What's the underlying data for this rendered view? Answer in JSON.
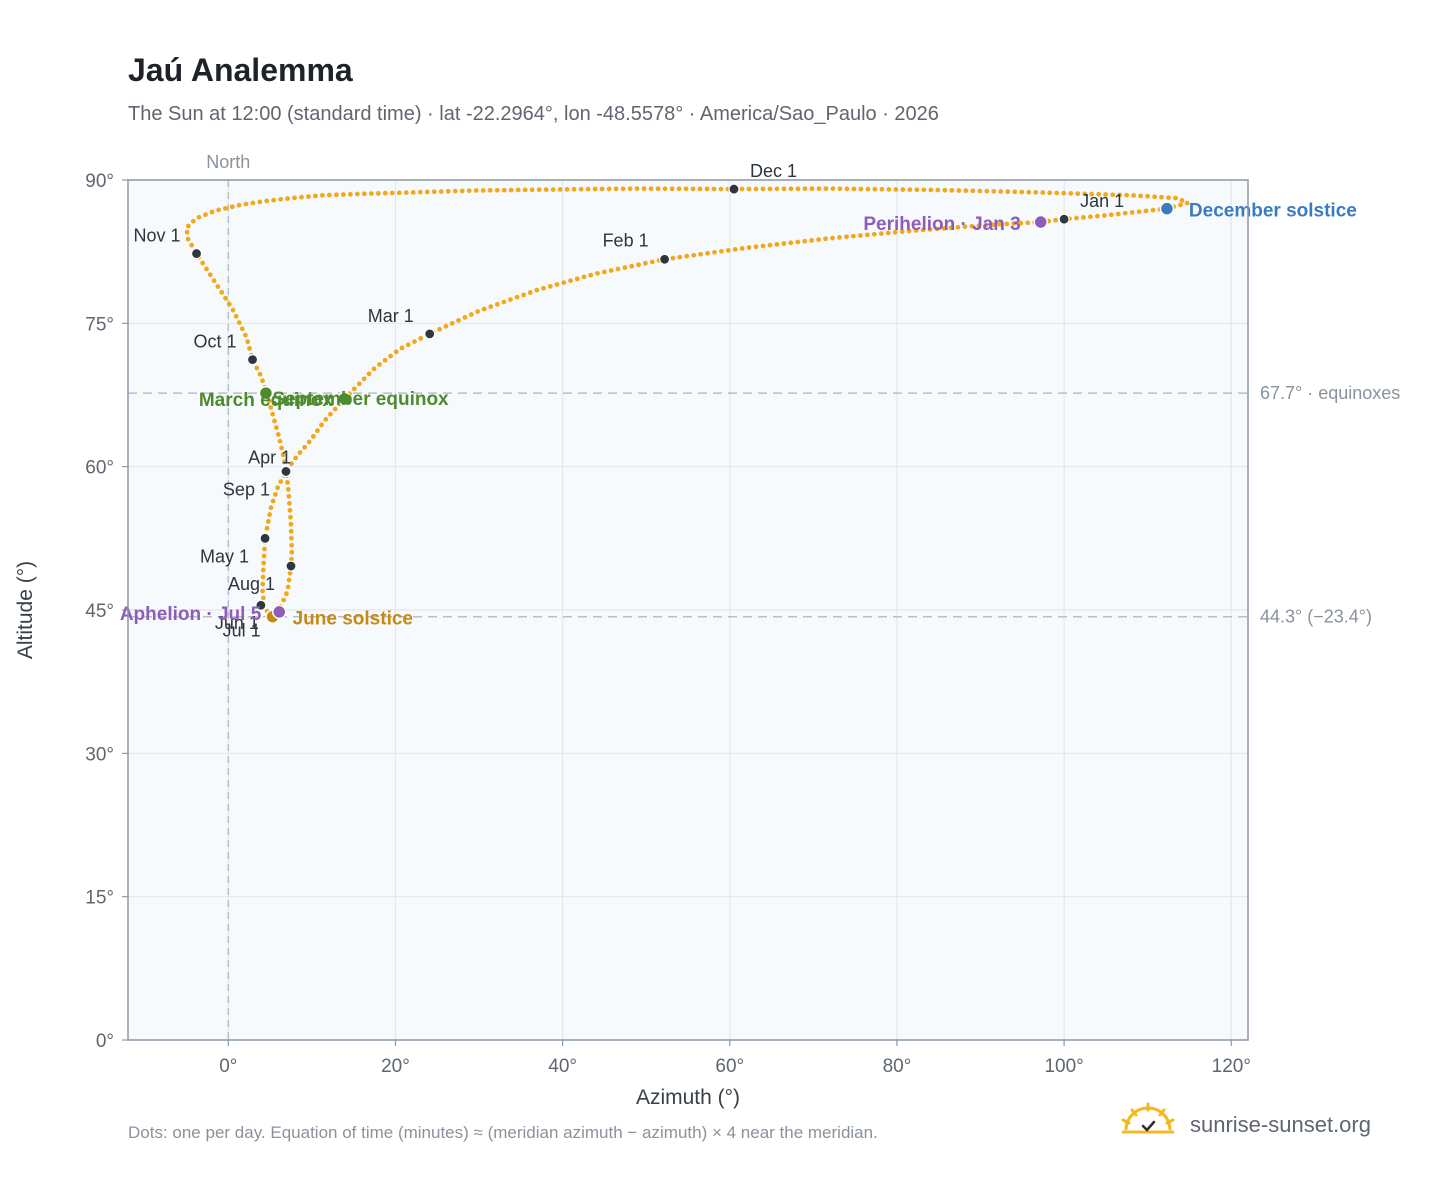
{
  "header": {
    "title": "Jaú Analemma",
    "subtitle": "The Sun at 12:00 (standard time) · lat -22.2964°, lon -48.5578° · America/Sao_Paulo · 2026"
  },
  "footer": {
    "note": "Dots: one per day. Equation of time (minutes) ≈ (meridian azimuth − azimuth) × 4 near the meridian.",
    "brand": "sunrise-sunset.org"
  },
  "chart_data": {
    "type": "scatter",
    "xlabel": "Azimuth (°)",
    "ylabel": "Altitude (°)",
    "xlim": [
      -12,
      122
    ],
    "ylim": [
      0,
      90
    ],
    "x_ticks": [
      {
        "value": 0,
        "label": "0°"
      },
      {
        "value": 20,
        "label": "20°"
      },
      {
        "value": 40,
        "label": "40°"
      },
      {
        "value": 60,
        "label": "60°"
      },
      {
        "value": 80,
        "label": "80°"
      },
      {
        "value": 100,
        "label": "100°"
      },
      {
        "value": 120,
        "label": "120°"
      }
    ],
    "y_ticks": [
      {
        "value": 0,
        "label": "0°"
      },
      {
        "value": 15,
        "label": "15°"
      },
      {
        "value": 30,
        "label": "30°"
      },
      {
        "value": 45,
        "label": "45°"
      },
      {
        "value": 60,
        "label": "60°"
      },
      {
        "value": 75,
        "label": "75°"
      },
      {
        "value": 90,
        "label": "90°"
      }
    ],
    "grid": true,
    "north_line": {
      "azimuth": 0,
      "label": "North"
    },
    "reference_lines": [
      {
        "altitude": 67.7,
        "label": "67.7° · equinoxes"
      },
      {
        "altitude": 44.3,
        "label": "44.3° (−23.4°)"
      }
    ],
    "curve_color": "#f2a81d",
    "path_knots": [
      [
        112.3,
        87.0
      ],
      [
        114.8,
        87.6
      ],
      [
        113.5,
        88.1
      ],
      [
        108,
        88.4
      ],
      [
        97,
        88.7
      ],
      [
        85,
        88.95
      ],
      [
        72,
        89.1
      ],
      [
        60.5,
        89.05
      ],
      [
        49,
        89.1
      ],
      [
        38.5,
        89.0
      ],
      [
        29.5,
        88.9
      ],
      [
        22,
        88.7
      ],
      [
        16,
        88.55
      ],
      [
        11.3,
        88.4
      ],
      [
        7.5,
        88.1
      ],
      [
        4.5,
        87.8
      ],
      [
        1.5,
        87.4
      ],
      [
        -1.5,
        86.8
      ],
      [
        -3.8,
        86.0
      ],
      [
        -5.0,
        85.0
      ],
      [
        -4.8,
        83.8
      ],
      [
        -3.8,
        82.3
      ],
      [
        -1.5,
        79.2
      ],
      [
        0.5,
        76.5
      ],
      [
        2.2,
        73.5
      ],
      [
        2.9,
        71.2
      ],
      [
        3.9,
        69.5
      ],
      [
        4.6,
        67.7
      ],
      [
        5.3,
        65.5
      ],
      [
        6.1,
        63.0
      ],
      [
        6.8,
        60.3
      ],
      [
        7.2,
        57.5
      ],
      [
        7.5,
        54.0
      ],
      [
        7.6,
        51.0
      ],
      [
        7.5,
        49.6
      ],
      [
        7.1,
        47.0
      ],
      [
        6.4,
        45.6
      ],
      [
        5.8,
        44.8
      ],
      [
        5.3,
        44.3
      ],
      [
        4.8,
        44.6
      ],
      [
        4.3,
        45.5
      ],
      [
        4.1,
        47.0
      ],
      [
        4.2,
        49.5
      ],
      [
        4.4,
        52.5
      ],
      [
        5.1,
        55.7
      ],
      [
        5.9,
        57.8
      ],
      [
        6.9,
        59.5
      ],
      [
        8.3,
        61.2
      ],
      [
        9.8,
        62.7
      ],
      [
        11.5,
        64.8
      ],
      [
        13.9,
        67.1
      ],
      [
        17.5,
        70.3
      ],
      [
        20.5,
        72.3
      ],
      [
        24.1,
        73.9
      ],
      [
        30,
        76.3
      ],
      [
        37,
        78.5
      ],
      [
        44,
        80.2
      ],
      [
        52.2,
        81.7
      ],
      [
        62,
        82.9
      ],
      [
        72,
        83.9
      ],
      [
        82,
        84.7
      ],
      [
        91,
        85.3
      ],
      [
        97.2,
        85.6
      ],
      [
        100,
        85.9
      ],
      [
        105,
        86.3
      ],
      [
        112.3,
        87.0
      ]
    ],
    "month_markers": [
      {
        "label": "Jan 1",
        "x": 100.0,
        "y": 85.9,
        "anchor": "start",
        "dx": 16,
        "dy": -12
      },
      {
        "label": "Feb 1",
        "x": 52.2,
        "y": 81.7,
        "anchor": "end",
        "dx": -16,
        "dy": -13
      },
      {
        "label": "Mar 1",
        "x": 24.1,
        "y": 73.9,
        "anchor": "end",
        "dx": -16,
        "dy": -12
      },
      {
        "label": "Apr 1",
        "x": 6.8,
        "y": 59.5,
        "anchor": "end",
        "dx": 6,
        "dy": -8
      },
      {
        "label": "May 1",
        "x": 4.4,
        "y": 52.5,
        "anchor": "end",
        "dx": -16,
        "dy": 24
      },
      {
        "label": "Jun 1",
        "x": 3.9,
        "y": 45.5,
        "anchor": "end",
        "dx": -2,
        "dy": 24
      },
      {
        "label": "Jul 1",
        "x": 5.3,
        "y": 44.3,
        "anchor": "end",
        "dx": -12,
        "dy": 20
      },
      {
        "label": "Aug 1",
        "x": 7.5,
        "y": 49.6,
        "anchor": "end",
        "dx": -16,
        "dy": 24
      },
      {
        "label": "Sep 1",
        "x": 6.9,
        "y": 59.5,
        "anchor": "end",
        "dx": -16,
        "dy": 24
      },
      {
        "label": "Oct 1",
        "x": 2.9,
        "y": 71.2,
        "anchor": "end",
        "dx": -16,
        "dy": -12
      },
      {
        "label": "Nov 1",
        "x": -3.8,
        "y": 82.3,
        "anchor": "end",
        "dx": -16,
        "dy": -12
      },
      {
        "label": "Dec 1",
        "x": 60.5,
        "y": 89.05,
        "anchor": "start",
        "dx": 16,
        "dy": -12
      }
    ],
    "events": [
      {
        "label": "December solstice",
        "x": 112.3,
        "y": 87.0,
        "color": "#3b7bbf",
        "anchor": "start",
        "dx": 22,
        "dy": 8
      },
      {
        "label": "Perihelion · Jan 3",
        "x": 97.2,
        "y": 85.6,
        "color": "#8e5db8",
        "anchor": "end",
        "dx": -20,
        "dy": 8
      },
      {
        "label": "March equinox",
        "x": 4.5,
        "y": 67.7,
        "color": "#4e8a2e",
        "anchor": "middle",
        "dx": 0,
        "dy": 13
      },
      {
        "label": "September equinox",
        "x": 13.9,
        "y": 67.1,
        "color": "#4e8a2e",
        "anchor": "middle",
        "dx": 16,
        "dy": 6
      },
      {
        "label": "June solstice",
        "x": 5.3,
        "y": 44.3,
        "color": "#c58a12",
        "anchor": "start",
        "dx": 20,
        "dy": 8
      },
      {
        "label": "Aphelion · Jul 5",
        "x": 6.1,
        "y": 44.8,
        "color": "#8e5db8",
        "anchor": "end",
        "dx": -18,
        "dy": 8
      }
    ]
  }
}
